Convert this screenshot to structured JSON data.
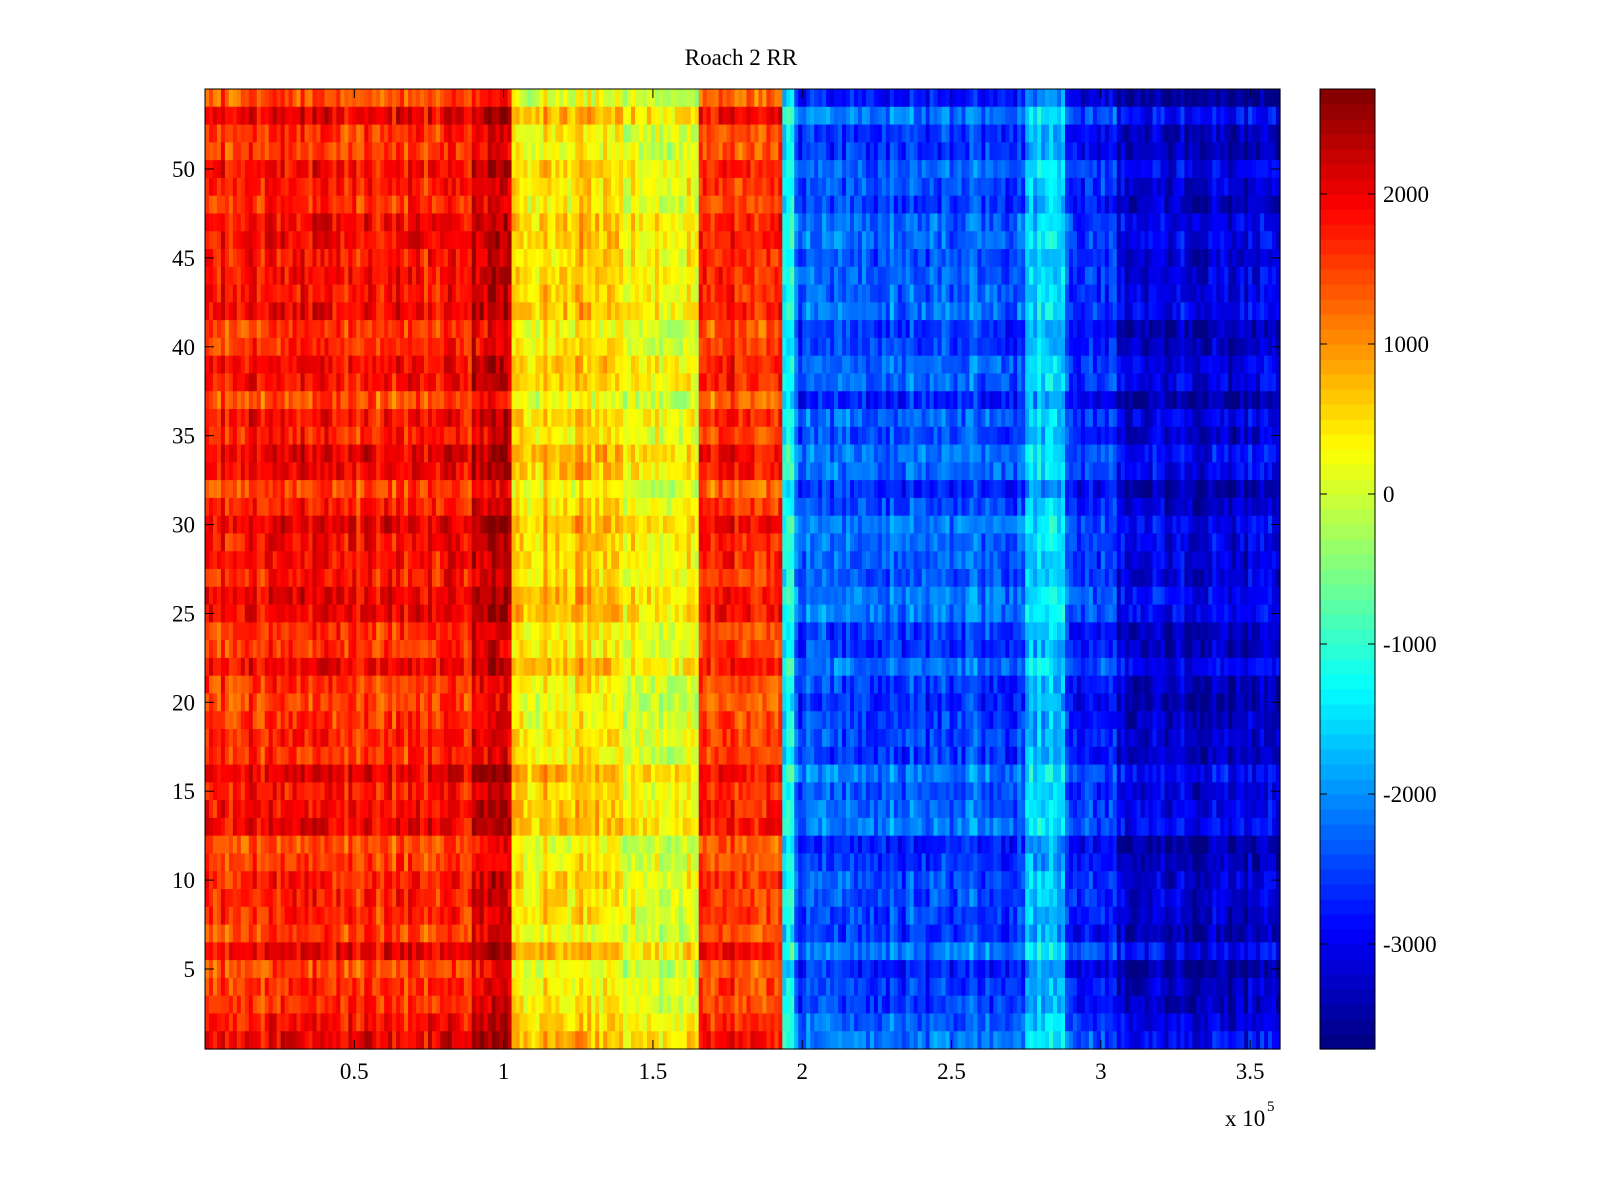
{
  "chart_data": {
    "type": "heatmap",
    "title": "Roach 2 RR",
    "xlabel": "",
    "ylabel": "",
    "x_multiplier_label": "x 10",
    "x_multiplier_exponent": "5",
    "xlim": [
      0,
      360000
    ],
    "ylim": [
      0.5,
      54.5
    ],
    "x_ticks": [
      {
        "value": 0.5,
        "label": "0.5"
      },
      {
        "value": 1,
        "label": "1"
      },
      {
        "value": 1.5,
        "label": "1.5"
      },
      {
        "value": 2,
        "label": "2"
      },
      {
        "value": 2.5,
        "label": "2.5"
      },
      {
        "value": 3,
        "label": "3"
      },
      {
        "value": 3.5,
        "label": "3.5"
      }
    ],
    "y_ticks": [
      {
        "value": 5,
        "label": "5"
      },
      {
        "value": 10,
        "label": "10"
      },
      {
        "value": 15,
        "label": "15"
      },
      {
        "value": 20,
        "label": "20"
      },
      {
        "value": 25,
        "label": "25"
      },
      {
        "value": 30,
        "label": "30"
      },
      {
        "value": 35,
        "label": "35"
      },
      {
        "value": 40,
        "label": "40"
      },
      {
        "value": 45,
        "label": "45"
      },
      {
        "value": 50,
        "label": "50"
      }
    ],
    "rows": 54,
    "colorbar": {
      "colormap": "jet",
      "min": -3700,
      "max": 2700,
      "ticks": [
        {
          "value": 2000,
          "label": "2000"
        },
        {
          "value": 1000,
          "label": "1000"
        },
        {
          "value": 0,
          "label": "0"
        },
        {
          "value": -1000,
          "label": "-1000"
        },
        {
          "value": -2000,
          "label": "-2000"
        },
        {
          "value": -3000,
          "label": "-3000"
        }
      ]
    },
    "column_segments": [
      {
        "x_start": 0,
        "x_end": 90000,
        "mean_value": 1700
      },
      {
        "x_start": 90000,
        "x_end": 103000,
        "mean_value": 2200
      },
      {
        "x_start": 103000,
        "x_end": 140000,
        "mean_value": 500
      },
      {
        "x_start": 140000,
        "x_end": 165000,
        "mean_value": 200
      },
      {
        "x_start": 165000,
        "x_end": 193000,
        "mean_value": 1600
      },
      {
        "x_start": 193000,
        "x_end": 198000,
        "mean_value": -1200
      },
      {
        "x_start": 198000,
        "x_end": 275000,
        "mean_value": -2400
      },
      {
        "x_start": 275000,
        "x_end": 288000,
        "mean_value": -1700
      },
      {
        "x_start": 288000,
        "x_end": 305000,
        "mean_value": -2600
      },
      {
        "x_start": 305000,
        "x_end": 360000,
        "mean_value": -3200
      }
    ]
  }
}
